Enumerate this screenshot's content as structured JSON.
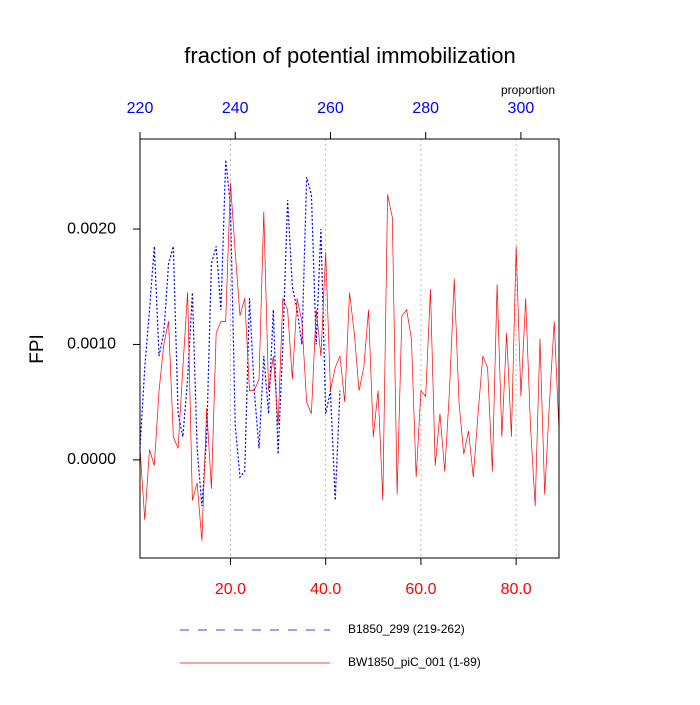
{
  "chart_data": {
    "type": "line",
    "title": "fraction of potential immobilization",
    "y_label": "FPI",
    "x2_label": "proportion",
    "xlim": [
      1,
      89
    ],
    "xticks": [
      {
        "value": 20,
        "label": "20.0"
      },
      {
        "value": 40,
        "label": "40.0"
      },
      {
        "value": 60,
        "label": "60.0"
      },
      {
        "value": 80,
        "label": "80.0"
      }
    ],
    "xtick_color": "#ff0000",
    "x2lim": [
      220,
      308
    ],
    "x2ticks": [
      220,
      240,
      260,
      280,
      300
    ],
    "x2tick_color": "#0000ff",
    "ylim": [
      -0.00085,
      0.00278
    ],
    "yticks": [
      {
        "value": 0,
        "label": "0.0000"
      },
      {
        "value": 0.001,
        "label": "0.0010"
      },
      {
        "value": 0.002,
        "label": "0.0020"
      }
    ],
    "grid": "x",
    "series": [
      {
        "name": "B1850_299 (219-262)",
        "color": "#0000ff",
        "dashed": true,
        "axis": "x2",
        "x": [
          220,
          221,
          222,
          223,
          224,
          225,
          226,
          227,
          228,
          229,
          230,
          231,
          232,
          233,
          234,
          235,
          236,
          237,
          238,
          239,
          240,
          241,
          242,
          243,
          244,
          245,
          246,
          247,
          248,
          249,
          250,
          251,
          252,
          253,
          254,
          255,
          256,
          257,
          258,
          259,
          260,
          261,
          262
        ],
        "values": [
          0.0001,
          0.0008,
          0.0013,
          0.00185,
          0.0009,
          0.0011,
          0.0017,
          0.00185,
          0.0004,
          0.0002,
          0.0007,
          0.00145,
          0.0001,
          -0.0004,
          0.0002,
          0.0017,
          0.00185,
          0.0013,
          0.0026,
          0.0022,
          0.0003,
          -0.00015,
          -0.0001,
          0.0014,
          0.0006,
          0.0001,
          0.0009,
          0.0004,
          0.0013,
          5e-05,
          0.001,
          0.00225,
          0.0015,
          0.0013,
          0.001,
          0.00245,
          0.0023,
          0.001,
          0.002,
          0.0004,
          0.0006,
          -0.00035,
          0.0006
        ]
      },
      {
        "name": "BW1850_piC_001 (1-89)",
        "color": "#ff0000",
        "dashed": false,
        "x": [
          1,
          2,
          3,
          4,
          5,
          6,
          7,
          8,
          9,
          10,
          11,
          12,
          13,
          14,
          15,
          16,
          17,
          18,
          19,
          20,
          21,
          22,
          23,
          24,
          25,
          26,
          27,
          28,
          29,
          30,
          31,
          32,
          33,
          34,
          35,
          36,
          37,
          38,
          39,
          40,
          41,
          42,
          43,
          44,
          45,
          46,
          47,
          48,
          49,
          50,
          51,
          52,
          53,
          54,
          55,
          56,
          57,
          58,
          59,
          60,
          61,
          62,
          63,
          64,
          65,
          66,
          67,
          68,
          69,
          70,
          71,
          72,
          73,
          74,
          75,
          76,
          77,
          78,
          79,
          80,
          81,
          82,
          83,
          84,
          85,
          86,
          87,
          88,
          89
        ],
        "values": [
          0.0001,
          -0.00052,
          9e-05,
          -5e-05,
          0.0006,
          0.001,
          0.0012,
          0.0002,
          0.0001,
          0.0008,
          0.00145,
          -0.00035,
          -0.0002,
          -0.0007,
          0.00045,
          -0.00025,
          0.0011,
          0.0012,
          0.0012,
          0.0024,
          0.0018,
          0.00125,
          0.0014,
          0.0006,
          0.0006,
          0.0007,
          0.00215,
          0.0006,
          0.0009,
          0.0003,
          0.0014,
          0.0013,
          0.0007,
          0.0014,
          0.0012,
          0.0005,
          0.0004,
          0.0013,
          0.0009,
          0.0018,
          0.0006,
          0.0008,
          0.0009,
          0.0005,
          0.00145,
          0.0011,
          0.0006,
          0.0008,
          0.0013,
          0.0002,
          0.0006,
          -0.00035,
          0.0023,
          0.0021,
          -0.0003,
          0.00125,
          0.0013,
          0.00105,
          -0.00015,
          0.0006,
          0.00055,
          0.00148,
          -5e-05,
          0.0004,
          -0.0001,
          0.0006,
          0.00157,
          0.0005,
          5e-05,
          0.00025,
          -0.00015,
          0.0004,
          0.0009,
          0.0008,
          -0.0001,
          0.00152,
          0.0002,
          0.0011,
          0.0002,
          0.00185,
          0.00055,
          0.0014,
          0.0003,
          -0.0004,
          0.00105,
          -0.0003,
          0.0005,
          0.0012,
          0.00025
        ]
      }
    ]
  }
}
